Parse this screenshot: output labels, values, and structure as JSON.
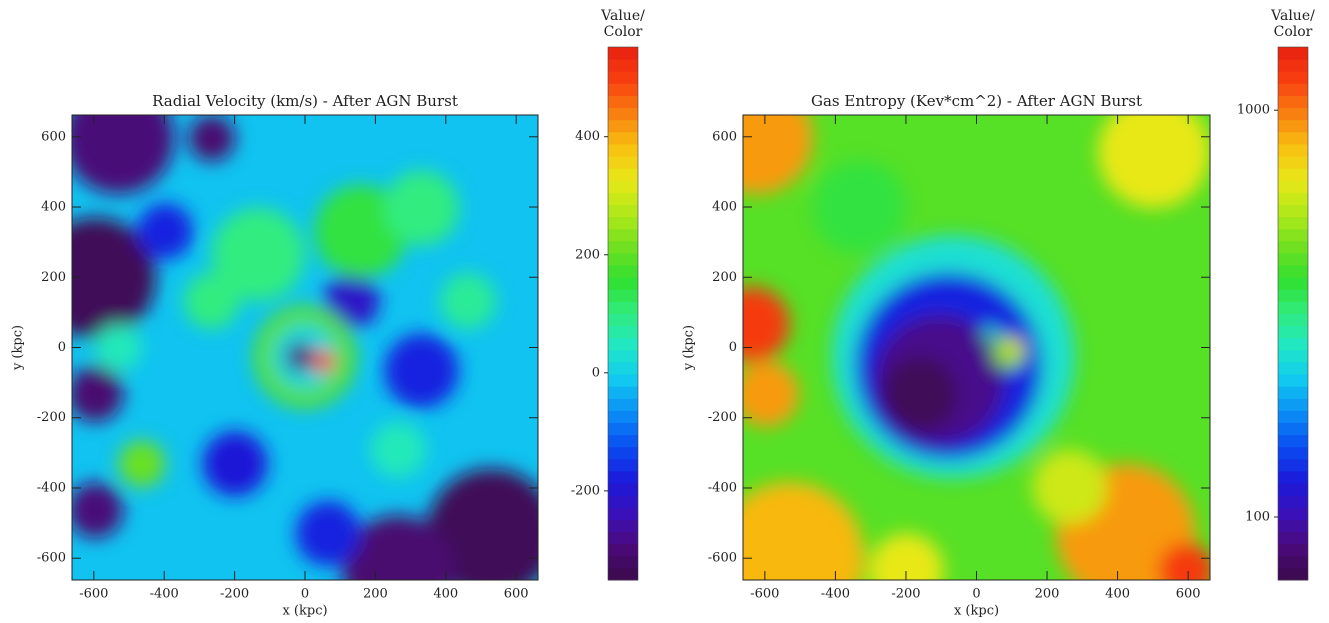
{
  "chart_data": [
    {
      "type": "heatmap",
      "title": "Radial Velocity (km/s) - After AGN Burst",
      "xlabel": "x (kpc)",
      "ylabel": "y (kpc)",
      "xlim": [
        -662,
        662
      ],
      "ylim": [
        -662,
        662
      ],
      "xticks": [
        -600,
        -400,
        -200,
        0,
        200,
        400,
        600
      ],
      "yticks": [
        -600,
        -400,
        -200,
        0,
        200,
        400,
        600
      ],
      "colormap": [
        "#3a0a4a",
        "#4b0a7a",
        "#3a10b8",
        "#1a1adb",
        "#0a4cf0",
        "#0a8cf5",
        "#10c8f0",
        "#20e8c8",
        "#30ec80",
        "#30e030",
        "#70e020",
        "#b0e818",
        "#e8e818",
        "#f8c010",
        "#f88010",
        "#f84010",
        "#e82010"
      ],
      "colorbar": {
        "label": [
          "Value/",
          "Color"
        ],
        "lim": [
          -351,
          552
        ],
        "ticks": [
          -200,
          0,
          200,
          400
        ],
        "log_scale": false
      }
    },
    {
      "type": "heatmap",
      "title": "Gas Entropy (Kev*cm^2) - After AGN Burst",
      "xlabel": "x (kpc)",
      "ylabel": "y (kpc)",
      "xlim": [
        -662,
        662
      ],
      "ylim": [
        -662,
        662
      ],
      "xticks": [
        -600,
        -400,
        -200,
        0,
        200,
        400,
        600
      ],
      "yticks": [
        -600,
        -400,
        -200,
        0,
        200,
        400,
        600
      ],
      "colormap": [
        "#3a0a4a",
        "#4b0a7a",
        "#3a10b8",
        "#1a1adb",
        "#0a4cf0",
        "#0a8cf5",
        "#10c8f0",
        "#20e8c8",
        "#30ec80",
        "#30e030",
        "#70e020",
        "#b0e818",
        "#e8e818",
        "#f8c010",
        "#f88010",
        "#f84010",
        "#e82010"
      ],
      "colorbar": {
        "label": [
          "Value/",
          "Color"
        ],
        "lim": [
          70,
          1430
        ],
        "ticks": [
          100,
          1000
        ],
        "log_scale": true
      }
    }
  ]
}
